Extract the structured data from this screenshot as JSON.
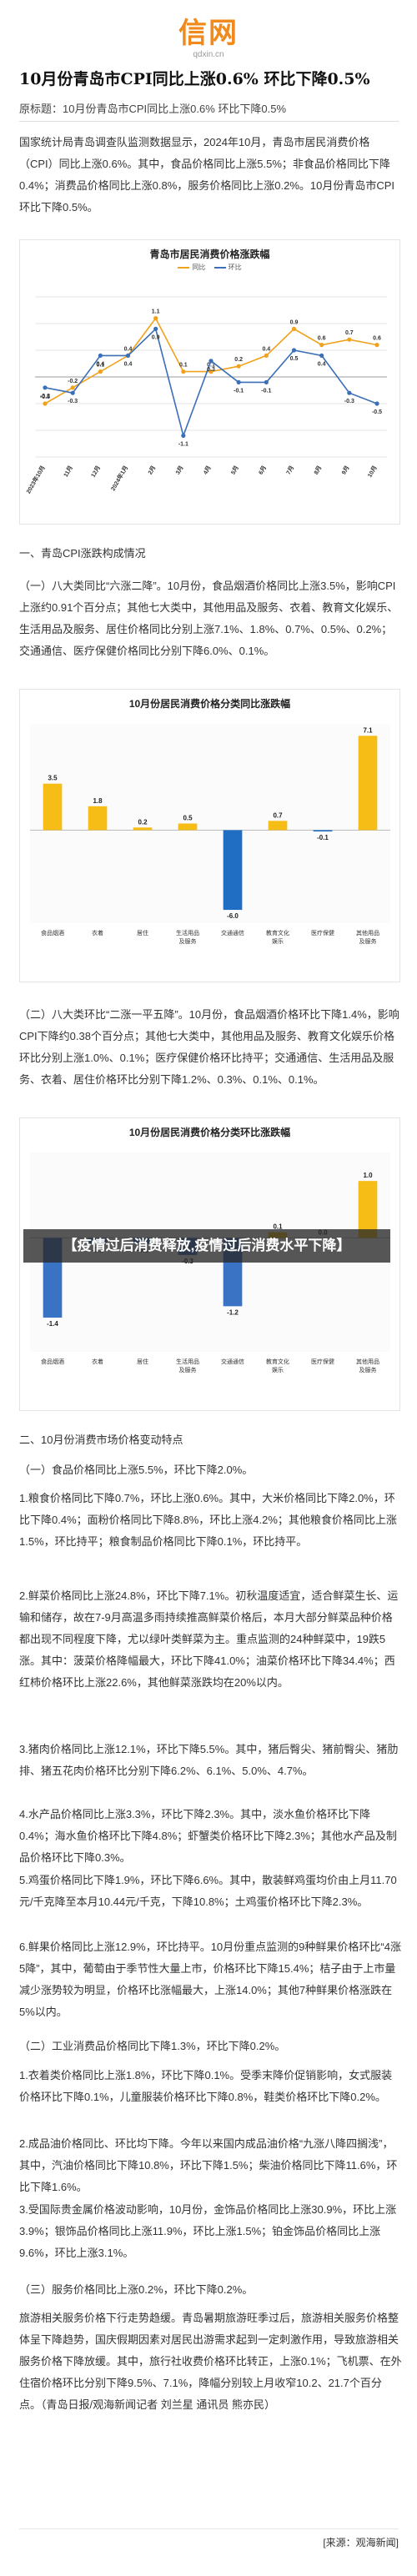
{
  "brand": {
    "logo": "信网",
    "domain": "qdxin.cn"
  },
  "article": {
    "title": "10月份青岛市CPI同比上涨0.6% 环比下降0.5%",
    "origin_title": "原标题：10月份青岛市CPI同比上涨0.6% 环比下降0.5%",
    "intro": "国家统计局青岛调查队监测数据显示，2024年10月，青岛市居民消费价格（CPI）同比上涨0.6%。其中，食品价格同比上涨5.5%；非食品价格同比下降0.4%；消费品价格同比上涨0.8%，服务价格同比上涨0.2%。10月份青岛市CPI环比下降0.5%。",
    "sec1_heading": "一、青岛CPI涨跌构成情况",
    "sec1_p1": "（一）八大类同比“六涨二降”。10月份，食品烟酒价格同比上涨3.5%，影响CPI上涨约0.91个百分点；其他七大类中，其他用品及服务、衣着、教育文化娱乐、生活用品及服务、居住价格同比分别上涨7.1%、1.8%、0.7%、0.5%、0.2%；交通通信、医疗保健价格同比分别下降6.0%、0.1%。",
    "sec1_p2": "（二）八大类环比“二涨一平五降”。10月份，食品烟酒价格环比下降1.4%，影响CPI下降约0.38个百分点；其他七大类中，其他用品及服务、教育文化娱乐价格环比分别上涨1.0%、0.1%；医疗保健价格环比持平；交通通信、生活用品及服务、衣着、居住价格环比分别下降1.2%、0.3%、0.1%、0.1%。",
    "sec2_heading": "二、10月份消费市场价格变动特点",
    "sec2_sub1": "（一）食品价格同比上涨5.5%，环比下降2.0%。",
    "sec2_p1": "1.粮食价格同比下降0.7%，环比上涨0.6%。其中，大米价格同比下降2.0%，环比下降0.4%；面粉价格同比下降8.8%，环比上涨4.2%；其他粮食价格同比上涨1.5%，环比持平；粮食制品价格同比下降0.1%，环比持平。",
    "sec2_p2": "2.鲜菜价格同比上涨24.8%，环比下降7.1%。初秋温度适宜，适合鲜菜生长、运输和储存，故在7-9月高温多雨持续推高鲜菜价格后，本月大部分鲜菜品种价格都出现不同程度下降，尤以绿叶类鲜菜为主。重点监测的24种鲜菜中，19跌5涨。其中：菠菜价格降幅最大，环比下降41.0%；油菜价格环比下降34.4%；西红柿价格环比上涨22.6%，其他鲜菜涨跌均在20%以内。",
    "sec2_p3": "3.猪肉价格同比上涨12.1%，环比下降5.5%。其中，猪后臀尖、猪前臀尖、猪肋排、猪五花肉价格环比分别下降6.2%、6.1%、5.0%、4.7%。",
    "sec2_p4": "4.水产品价格同比上涨3.3%，环比下降2.3%。其中，淡水鱼价格环比下降0.4%；海水鱼价格环比下降4.8%；虾蟹类价格环比下降2.3%；其他水产品及制品价格环比下降0.3%。",
    "sec2_p5": "5.鸡蛋价格同比下降1.9%，环比下降6.6%。其中，散装鲜鸡蛋均价由上月11.70元/千克降至本月10.44元/千克，下降10.8%；土鸡蛋价格环比下降2.3%。",
    "sec2_p6": "6.鲜果价格同比上涨12.9%，环比持平。10月份重点监测的9种鲜果价格环比“4涨5降”，其中，葡萄由于季节性大量上市，价格环比下降15.4%；桔子由于上市量减少涨势较为明显，价格环比涨幅最大，上涨14.0%；其他7种鲜果价格涨跌在5%以内。",
    "sec2_sub2": "（二）工业消费品价格同比下降1.3%，环比下降0.2%。",
    "sec2_p7": "1.衣着类价格同比上涨1.8%，环比下降0.1%。受季末降价促销影响，女式服装价格环比下降0.1%，儿童服装价格环比下降0.8%，鞋类价格环比下降0.2%。",
    "sec2_p8": "2.成品油价格同比、环比均下降。今年以来国内成品油价格“九涨八降四搁浅”，其中，汽油价格同比下降10.8%，环比下降1.5%；柴油价格同比下降11.6%，环比下降1.6%。",
    "sec2_p9": "3.受国际贵金属价格波动影响，10月份，金饰品价格同比上涨30.9%，环比上涨3.9%；银饰品价格同比上涨11.9%，环比上涨1.5%；铂金饰品价格同比上涨9.6%，环比上涨3.1%。",
    "sec2_sub3": "（三）服务价格同比上涨0.2%，环比下降0.2%。",
    "sec2_p10": "旅游相关服务价格下行走势趋缓。青岛暑期旅游旺季过后，旅游相关服务价格整体呈下降趋势，国庆假期因素对居民出游需求起到一定刺激作用，导致旅游相关服务价格下降放缓。其中，旅行社收费价格环比转正，上涨0.1%；飞机票、在外住宿价格环比分别下降9.5%、7.1%，降幅分别较上月收窄10.2、21.7个百分点。（青岛日报/观海新闻记者 刘兰星 通讯员 熊亦民）"
  },
  "banner": {
    "text": "【疫情过后消费释放,疫情过后消费水平下降】"
  },
  "source": {
    "text": "[来源：观海新闻]"
  },
  "charts": [
    {
      "title": "青岛市居民消费价格涨跌幅",
      "legend": [
        "同比",
        "环比"
      ],
      "colors": {
        "tongbi": "#f0a21c",
        "huanbi": "#3b6fb6"
      },
      "chart_data": {
        "type": "line",
        "categories": [
          "2023年10月",
          "11月",
          "12月",
          "2024年1月",
          "2月",
          "3月",
          "4月",
          "5月",
          "6月",
          "7月",
          "8月",
          "9月",
          "10月"
        ],
        "series": [
          {
            "name": "同比",
            "values": [
              -0.5,
              -0.2,
              0.1,
              0.4,
              1.1,
              0.1,
              0.1,
              0.2,
              0.4,
              0.9,
              0.6,
              0.7,
              0.6
            ]
          },
          {
            "name": "环比",
            "values": [
              -0.2,
              -0.3,
              0.4,
              0.4,
              0.9,
              -1.1,
              0.3,
              -0.1,
              -0.1,
              0.5,
              0.4,
              -0.3,
              -0.5
            ]
          }
        ],
        "ylim": [
          -1.5,
          1.5
        ]
      }
    },
    {
      "title": "10月份居民消费价格分类同比涨跌幅",
      "color_pos": "#f6bd16",
      "color_neg": "#1f6ec4",
      "chart_data": {
        "type": "bar",
        "categories": [
          "食品烟酒",
          "衣着",
          "居住",
          "生活用品及服务",
          "交通通信",
          "教育文化娱乐",
          "医疗保健",
          "其他用品及服务"
        ],
        "values": [
          3.5,
          1.8,
          0.2,
          0.5,
          -6.0,
          0.7,
          -0.1,
          7.1
        ],
        "ylim": [
          -7,
          8
        ]
      }
    },
    {
      "title": "10月份居民消费价格分类环比涨跌幅",
      "color_pos": "#f6bd16",
      "color_neg": "#3b73c4",
      "chart_data": {
        "type": "bar",
        "categories": [
          "食品烟酒",
          "衣着",
          "居住",
          "生活用品及服务",
          "交通通信",
          "教育文化娱乐",
          "医疗保健",
          "其他用品及服务"
        ],
        "values": [
          -1.4,
          -0.1,
          -0.1,
          -0.3,
          -1.2,
          0.1,
          0.0,
          1.0
        ],
        "ylim": [
          -2,
          1.5
        ]
      }
    }
  ]
}
